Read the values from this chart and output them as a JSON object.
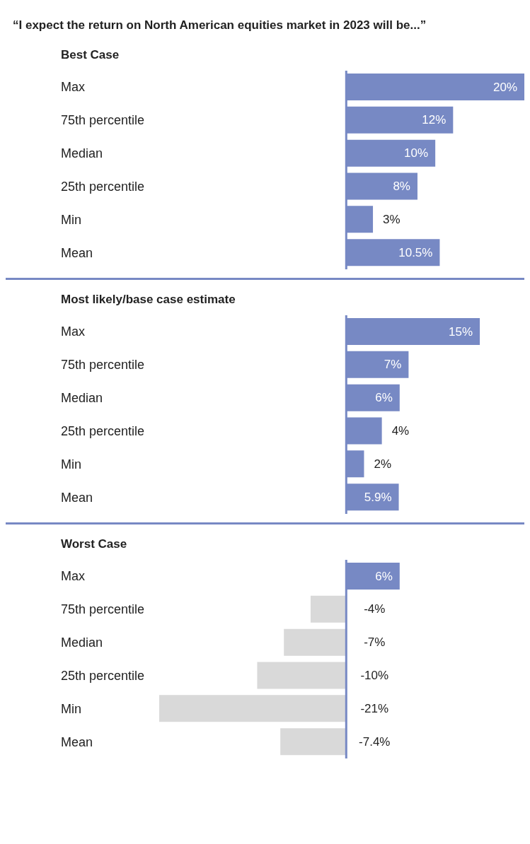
{
  "chart_data": [
    {
      "type": "bar",
      "orientation": "horizontal",
      "title": "“I expect the return on North American equities market in 2023 will be...”",
      "subtitle": "Best Case",
      "categories": [
        "Max",
        "75th percentile",
        "Median",
        "25th percentile",
        "Min",
        "Mean"
      ],
      "values": [
        20,
        12,
        10,
        8,
        3,
        10.5
      ],
      "colors": [
        "#7789c4",
        "#7789c4",
        "#7789c4",
        "#7789c4",
        "#7789c4",
        "#7789c4"
      ],
      "value_labels": [
        "20%",
        "12%",
        "10%",
        "8%",
        "3%",
        "10.5%"
      ],
      "ref_lines": [
        {
          "axis": "x",
          "value": 0,
          "color": "#7789c4"
        }
      ]
    },
    {
      "type": "bar",
      "orientation": "horizontal",
      "subtitle": "Most likely/base case estimate",
      "categories": [
        "Max",
        "75th percentile",
        "Median",
        "25th percentile",
        "Min",
        "Mean"
      ],
      "values": [
        15,
        7,
        6,
        4,
        2,
        5.9
      ],
      "colors": [
        "#7789c4",
        "#7789c4",
        "#7789c4",
        "#7789c4",
        "#7789c4",
        "#7789c4"
      ],
      "value_labels": [
        "15%",
        "7%",
        "6%",
        "4%",
        "2%",
        "5.9%"
      ],
      "ref_lines": [
        {
          "axis": "x",
          "value": 0,
          "color": "#7789c4"
        }
      ]
    },
    {
      "type": "bar",
      "orientation": "horizontal",
      "subtitle": "Worst Case",
      "categories": [
        "Max",
        "75th percentile",
        "Median",
        "25th percentile",
        "Min",
        "Mean"
      ],
      "values": [
        6,
        -4,
        -7,
        -10,
        -21,
        -7.4
      ],
      "colors": [
        "#7789c4",
        "#d9d9d9",
        "#d9d9d9",
        "#d9d9d9",
        "#d9d9d9",
        "#d9d9d9"
      ],
      "value_labels": [
        "6%",
        "-4%",
        "-7%",
        "-10%",
        "-21%",
        "-7.4%"
      ],
      "ref_lines": [
        {
          "axis": "x",
          "value": 0,
          "color": "#7789c4"
        }
      ]
    }
  ]
}
